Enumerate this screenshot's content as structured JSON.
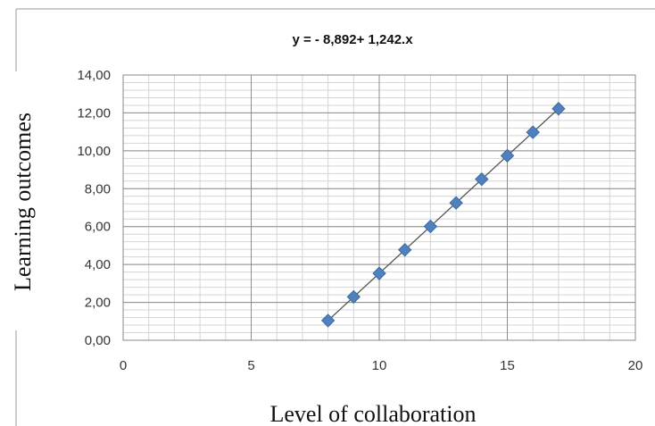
{
  "chart_data": {
    "type": "scatter",
    "equation": "y = - 8,892+ 1,242.x",
    "xlabel": "Level of collaboration",
    "ylabel": "Learning outcomes",
    "xlim": [
      0,
      20
    ],
    "ylim": [
      0,
      14
    ],
    "x_ticks": [
      "0",
      "5",
      "10",
      "15",
      "20"
    ],
    "y_ticks": [
      "0,00",
      "2,00",
      "4,00",
      "6,00",
      "8,00",
      "10,00",
      "12,00",
      "14,00"
    ],
    "grid": true,
    "marker_color": "#4F81BD",
    "line_color": "#555555",
    "trendline": {
      "intercept": -8.892,
      "slope": 1.242
    },
    "series": [
      {
        "x": [
          8,
          9,
          10,
          11,
          12,
          13,
          14,
          15,
          16,
          17
        ],
        "y": [
          1.04,
          2.29,
          3.53,
          4.77,
          6.01,
          7.25,
          8.5,
          9.74,
          10.98,
          12.22
        ]
      }
    ]
  }
}
